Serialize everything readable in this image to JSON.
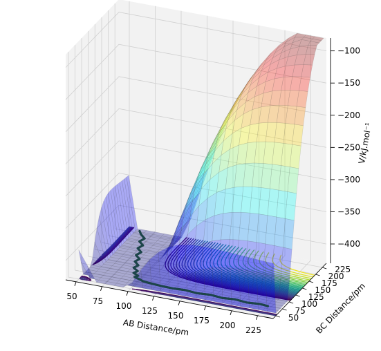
{
  "chart_data": {
    "type": "surface3d",
    "title": "",
    "xlabel": "AB Distance/pm",
    "ylabel": "BC Distance/pm",
    "zlabel": "V/kJ.mol$^{-1}$",
    "zlabel_display": "V/kJ.mol⁻¹",
    "xlim": [
      40,
      240
    ],
    "ylim": [
      40,
      240
    ],
    "zlim": [
      -430,
      -80
    ],
    "x_ticks": [
      50,
      75,
      100,
      125,
      150,
      175,
      200,
      225
    ],
    "y_ticks": [
      50,
      75,
      100,
      125,
      150,
      175,
      200,
      225
    ],
    "z_ticks": [
      -100,
      -150,
      -200,
      -250,
      -300,
      -350,
      -400
    ],
    "surface_colormap": "jet",
    "surface_alpha": 0.3,
    "contour_colormap": "viridis",
    "grid": true,
    "pane_color": "#f2f2f2",
    "trajectory_color": "#111111",
    "trajectory": {
      "x": [
        62,
        66,
        72,
        70,
        76,
        74,
        80,
        78,
        84,
        82,
        88,
        86,
        92,
        90,
        96,
        94,
        100,
        104,
        112,
        122,
        134,
        146,
        158,
        170,
        182,
        194,
        206,
        218,
        226
      ],
      "y": [
        232,
        222,
        212,
        200,
        190,
        178,
        168,
        156,
        146,
        136,
        126,
        116,
        108,
        100,
        94,
        88,
        84,
        80,
        78,
        76,
        75,
        77,
        74,
        77,
        74,
        77,
        74,
        77,
        75
      ]
    },
    "surface_model": {
      "form": "LEPS",
      "D_kJmol": 432,
      "r0_pm": 74,
      "beta_per_pm": 0.019,
      "cap_kJmol": -80
    }
  }
}
